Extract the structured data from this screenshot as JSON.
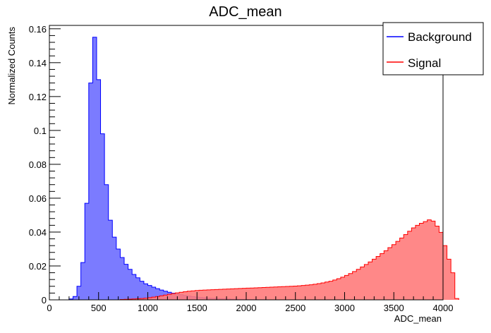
{
  "chart_data": {
    "type": "area",
    "title": "ADC_mean",
    "xlabel": "ADC_mean",
    "ylabel": "Normalized Counts",
    "xlim": [
      0,
      4000
    ],
    "ylim": [
      0,
      0.162
    ],
    "grid": false,
    "legend_position": "top-right",
    "x_ticks": [
      "0",
      "500",
      "1000",
      "1500",
      "2000",
      "2500",
      "3000",
      "3500",
      "4000"
    ],
    "y_ticks": [
      "0",
      "0.02",
      "0.04",
      "0.06",
      "0.08",
      "0.1",
      "0.12",
      "0.14",
      "0.16"
    ],
    "bin_width": 40,
    "series": [
      {
        "name": "Background",
        "color": "#0000ff",
        "fill": "#7b7bff",
        "x_start": 200,
        "values": [
          0.0005,
          0.002,
          0.008,
          0.022,
          0.057,
          0.128,
          0.155,
          0.13,
          0.098,
          0.068,
          0.047,
          0.037,
          0.03,
          0.025,
          0.021,
          0.018,
          0.015,
          0.013,
          0.011,
          0.0095,
          0.0085,
          0.0075,
          0.0066,
          0.0058,
          0.0051,
          0.0045,
          0.0039,
          0.0034,
          0.003,
          0.0026,
          0.0022,
          0.0019,
          0.0016,
          0.0014,
          0.0012,
          0.001,
          0.0009,
          0.0008,
          0.0007,
          0.0006,
          0.0005,
          0.0004,
          0.0004,
          0.0003,
          0.0003,
          0.0002,
          0.0002,
          0.0002,
          0.0001,
          0.0001
        ]
      },
      {
        "name": "Signal",
        "color": "#ff0000",
        "fill": "#ff7b7b",
        "x_start": 720,
        "values": [
          0.0002,
          0.0003,
          0.0004,
          0.0005,
          0.0006,
          0.0008,
          0.001,
          0.0013,
          0.0016,
          0.002,
          0.0024,
          0.0028,
          0.0033,
          0.0037,
          0.0041,
          0.0045,
          0.0048,
          0.0051,
          0.0053,
          0.0055,
          0.0057,
          0.0058,
          0.0059,
          0.006,
          0.0061,
          0.0062,
          0.0063,
          0.0064,
          0.0065,
          0.0066,
          0.0067,
          0.0068,
          0.0069,
          0.007,
          0.0071,
          0.0072,
          0.0073,
          0.0074,
          0.0075,
          0.0076,
          0.0077,
          0.0078,
          0.0079,
          0.008,
          0.0081,
          0.0083,
          0.0085,
          0.0087,
          0.0089,
          0.0092,
          0.0096,
          0.01,
          0.0105,
          0.011,
          0.0117,
          0.0125,
          0.0134,
          0.0144,
          0.0155,
          0.0167,
          0.018,
          0.0194,
          0.0209,
          0.0224,
          0.024,
          0.0256,
          0.0273,
          0.029,
          0.0308,
          0.0326,
          0.0345,
          0.0365,
          0.0385,
          0.0405,
          0.0425,
          0.044,
          0.0452,
          0.0462,
          0.0472,
          0.0465,
          0.0435,
          0.0398,
          0.032,
          0.024,
          0.016,
          0.0008
        ]
      }
    ]
  }
}
